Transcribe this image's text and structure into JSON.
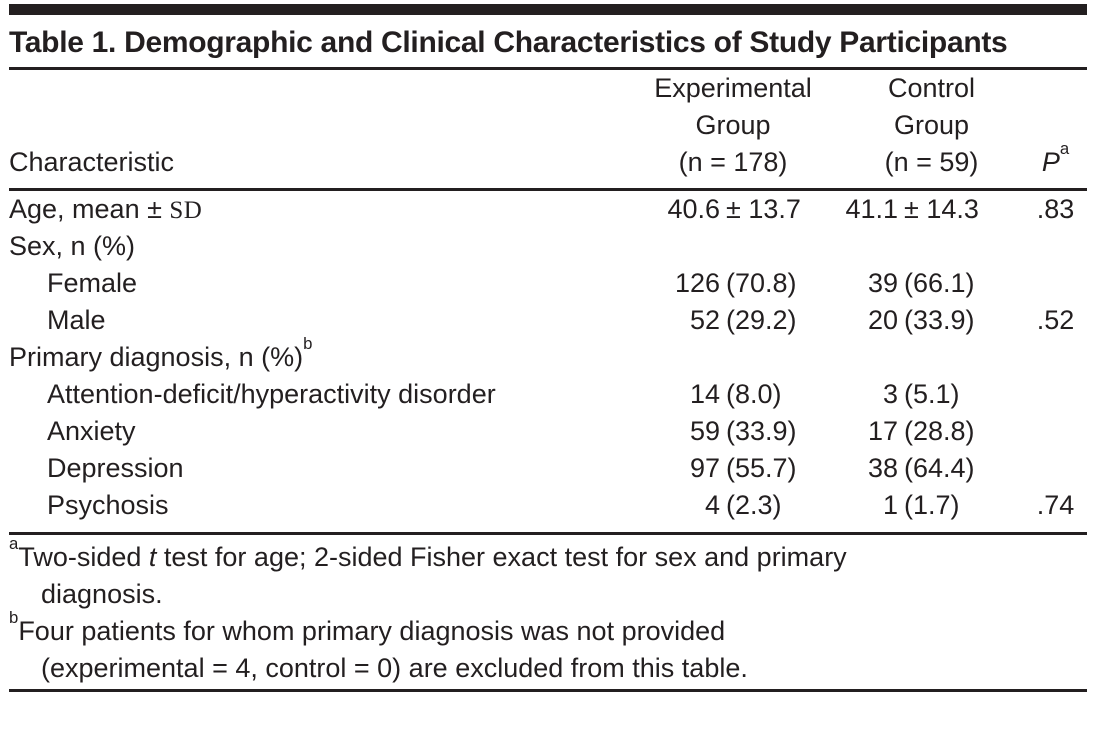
{
  "title": "Table 1. Demographic and Clinical Characteristics of Study Participants",
  "header": {
    "characteristic": "Characteristic",
    "experimental_lines": [
      "Experimental",
      "Group",
      "(n = 178)"
    ],
    "control_lines": [
      "Control",
      "Group",
      "(n = 59)"
    ],
    "p_label": "P",
    "p_sup": "a"
  },
  "table": {
    "rows": [
      {
        "label": "Age, mean ± ",
        "label_serif": "SD",
        "label_sup": "",
        "indent": false,
        "exp": {
          "n": "40.6",
          "pct": "± 13.7"
        },
        "ctrl": {
          "n": "41.1",
          "pct": "± 14.3"
        },
        "p": ".83"
      },
      {
        "label": "Sex, n (%)",
        "label_serif": "",
        "label_sup": "",
        "indent": false,
        "exp": {
          "n": "",
          "pct": ""
        },
        "ctrl": {
          "n": "",
          "pct": ""
        },
        "p": ""
      },
      {
        "label": "Female",
        "label_serif": "",
        "label_sup": "",
        "indent": true,
        "exp": {
          "n": "126",
          "pct": "(70.8)"
        },
        "ctrl": {
          "n": "39",
          "pct": "(66.1)"
        },
        "p": ""
      },
      {
        "label": "Male",
        "label_serif": "",
        "label_sup": "",
        "indent": true,
        "exp": {
          "n": "52",
          "pct": "(29.2)"
        },
        "ctrl": {
          "n": "20",
          "pct": "(33.9)"
        },
        "p": ".52"
      },
      {
        "label": "Primary diagnosis, n (%)",
        "label_serif": "",
        "label_sup": "b",
        "indent": false,
        "exp": {
          "n": "",
          "pct": ""
        },
        "ctrl": {
          "n": "",
          "pct": ""
        },
        "p": ""
      },
      {
        "label": "Attention-deficit/hyperactivity disorder",
        "label_serif": "",
        "label_sup": "",
        "indent": true,
        "exp": {
          "n": "14",
          "pct": "(8.0)"
        },
        "ctrl": {
          "n": "3",
          "pct": "(5.1)"
        },
        "p": ""
      },
      {
        "label": "Anxiety",
        "label_serif": "",
        "label_sup": "",
        "indent": true,
        "exp": {
          "n": "59",
          "pct": "(33.9)"
        },
        "ctrl": {
          "n": "17",
          "pct": "(28.8)"
        },
        "p": ""
      },
      {
        "label": "Depression",
        "label_serif": "",
        "label_sup": "",
        "indent": true,
        "exp": {
          "n": "97",
          "pct": "(55.7)"
        },
        "ctrl": {
          "n": "38",
          "pct": "(64.4)"
        },
        "p": ""
      },
      {
        "label": "Psychosis",
        "label_serif": "",
        "label_sup": "",
        "indent": true,
        "exp": {
          "n": "4",
          "pct": "(2.3)"
        },
        "ctrl": {
          "n": "1",
          "pct": "(1.7)"
        },
        "p": ".74"
      }
    ]
  },
  "footnotes": [
    {
      "sup": "a",
      "lines": [
        {
          "pre": "Two-sided ",
          "italic": "t",
          "post": " test for age; 2-sided Fisher exact test for sex and primary"
        },
        {
          "pre": "diagnosis.",
          "italic": "",
          "post": ""
        }
      ]
    },
    {
      "sup": "b",
      "lines": [
        {
          "pre": "Four patients for whom primary diagnosis was not provided",
          "italic": "",
          "post": ""
        },
        {
          "pre": "(experimental = 4, control = 0) are excluded from this table.",
          "italic": "",
          "post": ""
        }
      ]
    }
  ],
  "colors": {
    "text": "#231f20",
    "rule": "#231f20",
    "background": "#ffffff"
  }
}
